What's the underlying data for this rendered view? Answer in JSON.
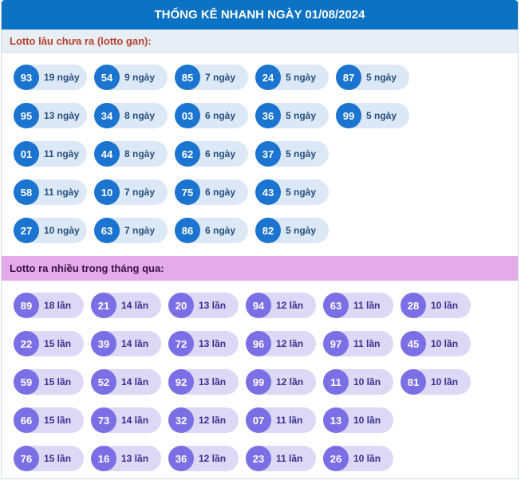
{
  "header": {
    "title": "THỐNG KÊ NHANH NGÀY 01/08/2024"
  },
  "gan": {
    "title": "Lotto lâu chưa ra (lotto gan):",
    "rows": [
      [
        {
          "num": "93",
          "count": "19 ngày"
        },
        {
          "num": "54",
          "count": "9 ngày"
        },
        {
          "num": "85",
          "count": "7 ngày"
        },
        {
          "num": "24",
          "count": "5 ngày"
        },
        {
          "num": "87",
          "count": "5 ngày"
        }
      ],
      [
        {
          "num": "95",
          "count": "13 ngày"
        },
        {
          "num": "34",
          "count": "8 ngày"
        },
        {
          "num": "03",
          "count": "6 ngày"
        },
        {
          "num": "36",
          "count": "5 ngày"
        },
        {
          "num": "99",
          "count": "5 ngày"
        }
      ],
      [
        {
          "num": "01",
          "count": "11 ngày"
        },
        {
          "num": "44",
          "count": "8 ngày"
        },
        {
          "num": "62",
          "count": "6 ngày"
        },
        {
          "num": "37",
          "count": "5 ngày"
        }
      ],
      [
        {
          "num": "58",
          "count": "11 ngày"
        },
        {
          "num": "10",
          "count": "7 ngày"
        },
        {
          "num": "75",
          "count": "6 ngày"
        },
        {
          "num": "43",
          "count": "5 ngày"
        }
      ],
      [
        {
          "num": "27",
          "count": "10 ngày"
        },
        {
          "num": "63",
          "count": "7 ngày"
        },
        {
          "num": "86",
          "count": "6 ngày"
        },
        {
          "num": "82",
          "count": "5 ngày"
        }
      ]
    ]
  },
  "frequent": {
    "title": "Lotto ra nhiều trong tháng qua:",
    "rows": [
      [
        {
          "num": "89",
          "count": "18 lần"
        },
        {
          "num": "21",
          "count": "14 lần"
        },
        {
          "num": "20",
          "count": "13 lần"
        },
        {
          "num": "94",
          "count": "12 lần"
        },
        {
          "num": "63",
          "count": "11 lần"
        },
        {
          "num": "28",
          "count": "10 lần"
        }
      ],
      [
        {
          "num": "22",
          "count": "15 lần"
        },
        {
          "num": "39",
          "count": "14 lần"
        },
        {
          "num": "72",
          "count": "13 lần"
        },
        {
          "num": "96",
          "count": "12 lần"
        },
        {
          "num": "97",
          "count": "11 lần"
        },
        {
          "num": "45",
          "count": "10 lần"
        }
      ],
      [
        {
          "num": "59",
          "count": "15 lần"
        },
        {
          "num": "52",
          "count": "14 lần"
        },
        {
          "num": "92",
          "count": "13 lần"
        },
        {
          "num": "99",
          "count": "12 lần"
        },
        {
          "num": "11",
          "count": "10 lần"
        },
        {
          "num": "81",
          "count": "10 lần"
        }
      ],
      [
        {
          "num": "66",
          "count": "15 lần"
        },
        {
          "num": "73",
          "count": "14 lần"
        },
        {
          "num": "32",
          "count": "12 lần"
        },
        {
          "num": "07",
          "count": "11 lần"
        },
        {
          "num": "13",
          "count": "10 lần"
        }
      ],
      [
        {
          "num": "76",
          "count": "15 lần"
        },
        {
          "num": "16",
          "count": "13 lần"
        },
        {
          "num": "36",
          "count": "12 lần"
        },
        {
          "num": "23",
          "count": "11 lần"
        },
        {
          "num": "26",
          "count": "10 lần"
        }
      ]
    ]
  },
  "colors": {
    "header_bg": "#0b72c4",
    "gan_ball": "#1a74d0",
    "frequent_ball": "#7b6fe6",
    "frequent_header_bg": "#e3abe9"
  }
}
